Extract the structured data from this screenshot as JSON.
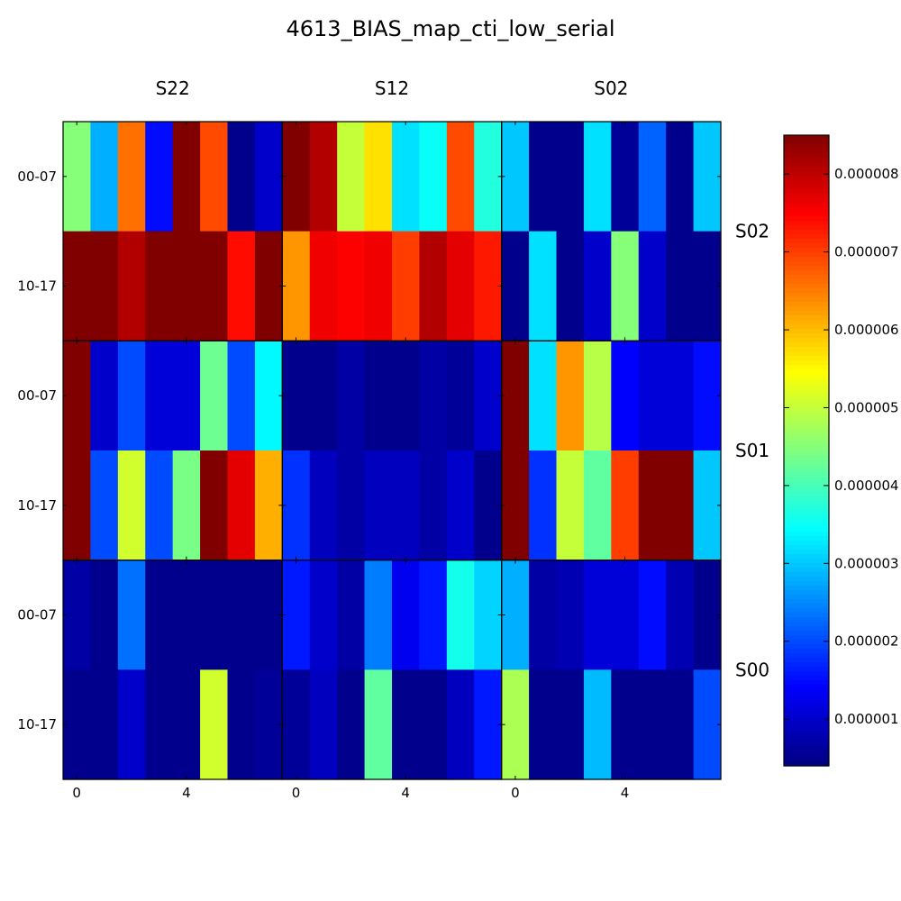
{
  "chart_data": {
    "type": "heatmap",
    "title": "4613_BIAS_map_cti_low_serial",
    "column_groups": [
      "S22",
      "S12",
      "S02"
    ],
    "row_groups": [
      "S02",
      "S01",
      "S00"
    ],
    "row_labels": [
      "00-07",
      "10-17"
    ],
    "x_ticks": [
      "0",
      "4"
    ],
    "columns_per_group": 8,
    "colormap": "jet",
    "vmin": 4e-07,
    "vmax": 8.5e-06,
    "colorbar_ticks": [
      {
        "value": 1e-06,
        "label": "0.000001"
      },
      {
        "value": 2e-06,
        "label": "0.000002"
      },
      {
        "value": 3e-06,
        "label": "0.000003"
      },
      {
        "value": 4e-06,
        "label": "0.000004"
      },
      {
        "value": 5e-06,
        "label": "0.000005"
      },
      {
        "value": 6e-06,
        "label": "0.000006"
      },
      {
        "value": 7e-06,
        "label": "0.000007"
      },
      {
        "value": 8e-06,
        "label": "0.000008"
      }
    ],
    "rows": [
      {
        "row_group": "S02",
        "label": "00-07",
        "values": [
          4.5e-06,
          2.8e-06,
          6.6e-06,
          1.5e-06,
          8.5e-06,
          6.9e-06,
          5e-07,
          1e-06,
          8.5e-06,
          8.1e-06,
          5e-06,
          5.7e-06,
          3.2e-06,
          3.5e-06,
          6.9e-06,
          3.7e-06,
          3e-06,
          5e-07,
          5e-07,
          3.2e-06,
          6e-07,
          2.2e-06,
          5e-07,
          3e-06
        ]
      },
      {
        "row_group": "S02",
        "label": "10-17",
        "values": [
          8.5e-06,
          8.5e-06,
          8.1e-06,
          8.5e-06,
          8.5e-06,
          8.5e-06,
          7.4e-06,
          8.5e-06,
          6.3e-06,
          7.6e-06,
          7.5e-06,
          7.6e-06,
          7e-06,
          8.1e-06,
          7.7e-06,
          7.3e-06,
          5e-07,
          3.2e-06,
          5e-07,
          1e-06,
          4.5e-06,
          1e-06,
          5e-07,
          5e-07
        ]
      },
      {
        "row_group": "S01",
        "label": "00-07",
        "values": [
          8.5e-06,
          1e-06,
          2e-06,
          1.1e-06,
          1.1e-06,
          4.3e-06,
          2e-06,
          3.4e-06,
          5e-07,
          5e-07,
          7e-07,
          5e-07,
          5e-07,
          7e-07,
          6e-07,
          1e-06,
          8.5e-06,
          3.2e-06,
          6.3e-06,
          4.9e-06,
          1.4e-06,
          1.1e-06,
          1.1e-06,
          1.5e-06
        ]
      },
      {
        "row_group": "S01",
        "label": "10-17",
        "values": [
          8.5e-06,
          2e-06,
          5.1e-06,
          2e-06,
          4.4e-06,
          8.5e-06,
          7.7e-06,
          6.1e-06,
          1.8e-06,
          9e-07,
          7e-07,
          9e-07,
          9e-07,
          7e-07,
          1e-06,
          5e-07,
          8.5e-06,
          1.8e-06,
          5e-06,
          4.2e-06,
          7e-06,
          8.5e-06,
          8.5e-06,
          3e-06
        ]
      },
      {
        "row_group": "S00",
        "label": "00-07",
        "values": [
          7e-07,
          5e-07,
          2.3e-06,
          5e-07,
          5e-07,
          5e-07,
          5e-07,
          5e-07,
          1.6e-06,
          1e-06,
          7e-07,
          2.4e-06,
          1.3e-06,
          1.6e-06,
          3.6e-06,
          3.1e-06,
          2.8e-06,
          7e-07,
          8e-07,
          1.1e-06,
          1.1e-06,
          1.5e-06,
          8e-07,
          5e-07
        ]
      },
      {
        "row_group": "S00",
        "label": "10-17",
        "values": [
          5e-07,
          5e-07,
          1e-06,
          5e-07,
          5e-07,
          5.1e-06,
          5e-07,
          6e-07,
          6e-07,
          9e-07,
          5e-07,
          4.2e-06,
          5e-07,
          5e-07,
          9e-07,
          1.6e-06,
          4.8e-06,
          5e-07,
          5e-07,
          2.9e-06,
          5e-07,
          5e-07,
          5e-07,
          2e-06
        ]
      }
    ]
  }
}
